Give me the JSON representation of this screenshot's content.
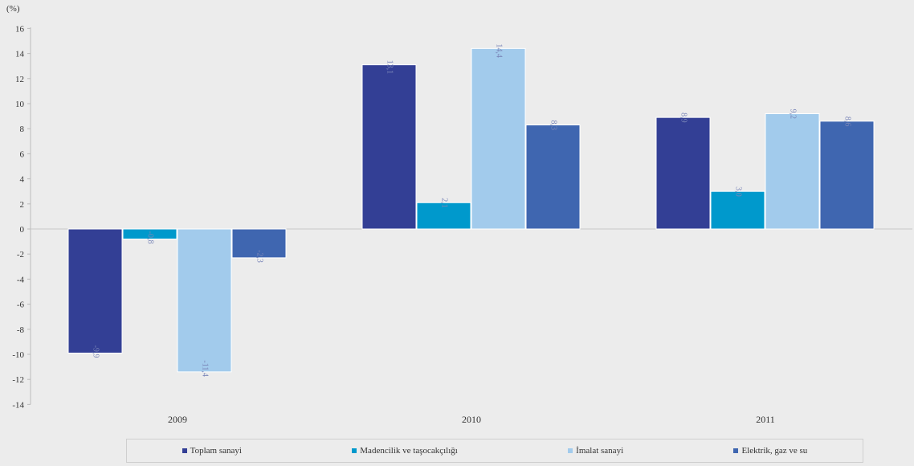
{
  "chart_data": {
    "type": "bar",
    "unit_label": "(%)",
    "categories": [
      "2009",
      "2010",
      "2011"
    ],
    "series": [
      {
        "name": "Toplam sanayi",
        "color": "#333f95",
        "values": [
          -9.9,
          13.1,
          8.9
        ],
        "labels": [
          "-9,9",
          "13,1",
          "8,9"
        ]
      },
      {
        "name": "Madencilik ve taşocakçılığı",
        "color": "#0099cc",
        "values": [
          -0.8,
          2.1,
          3.0
        ],
        "labels": [
          "-0,8",
          "2,1",
          "3,0"
        ]
      },
      {
        "name": "İmalat sanayi",
        "color": "#a2cbec",
        "values": [
          -11.4,
          14.4,
          9.2
        ],
        "labels": [
          "-11,4",
          "14,4",
          "9,2"
        ]
      },
      {
        "name": "Elektrik, gaz ve su",
        "color": "#3f66b0",
        "values": [
          -2.3,
          8.3,
          8.6
        ],
        "labels": [
          "-2,3",
          "8,3",
          "8,6"
        ]
      }
    ],
    "yticks": [
      16,
      14,
      12,
      10,
      8,
      6,
      4,
      2,
      0,
      -2,
      -4,
      -6,
      -8,
      -10,
      -12,
      -14
    ],
    "ylim": [
      -14,
      16
    ],
    "legend_position": "bottom",
    "grid": false
  }
}
